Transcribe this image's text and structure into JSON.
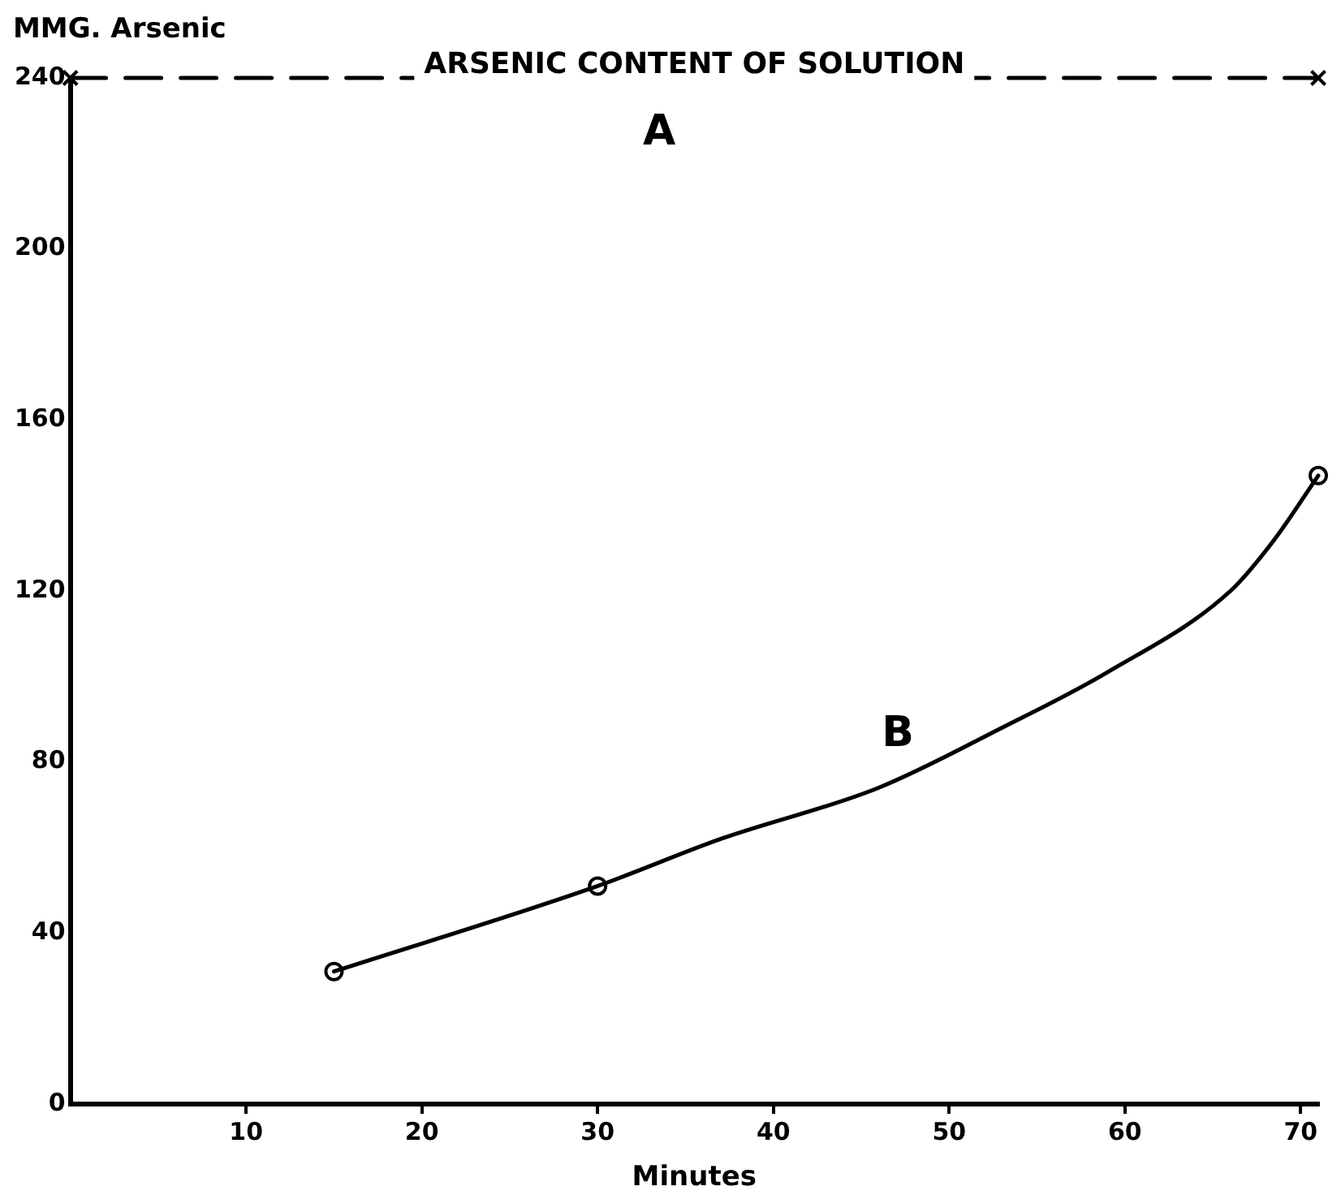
{
  "chart_data": {
    "type": "line",
    "ylabel": "MMG. Arsenic",
    "xlabel": "Minutes",
    "xlim": [
      0,
      71
    ],
    "xticks": [
      10,
      20,
      30,
      40,
      50,
      60,
      70
    ],
    "ylim": [
      0,
      240
    ],
    "yticks": [
      0,
      40,
      80,
      120,
      160,
      200,
      240
    ],
    "grid": false,
    "legend": false,
    "series": [
      {
        "name": "A",
        "color": "#000000",
        "x": [
          0,
          71
        ],
        "values": [
          240,
          240
        ],
        "line_style": "dashed",
        "marker": "cross"
      },
      {
        "name": "B",
        "color": "#000000",
        "x": [
          15,
          30,
          37,
          46,
          53,
          59,
          66,
          68.5,
          71
        ],
        "values": [
          31,
          51,
          62,
          74,
          88,
          101,
          120,
          132,
          147
        ],
        "line_style": "solid",
        "marker": "none"
      },
      {
        "type": "scatter",
        "color": "#000000",
        "x": [
          15,
          30,
          71
        ],
        "values": [
          31,
          51,
          147
        ],
        "marker": "circle"
      }
    ],
    "annotations": [
      {
        "text": "ARSENIC CONTENT OF SOLUTION",
        "x": 35.5,
        "y": 240
      }
    ]
  }
}
